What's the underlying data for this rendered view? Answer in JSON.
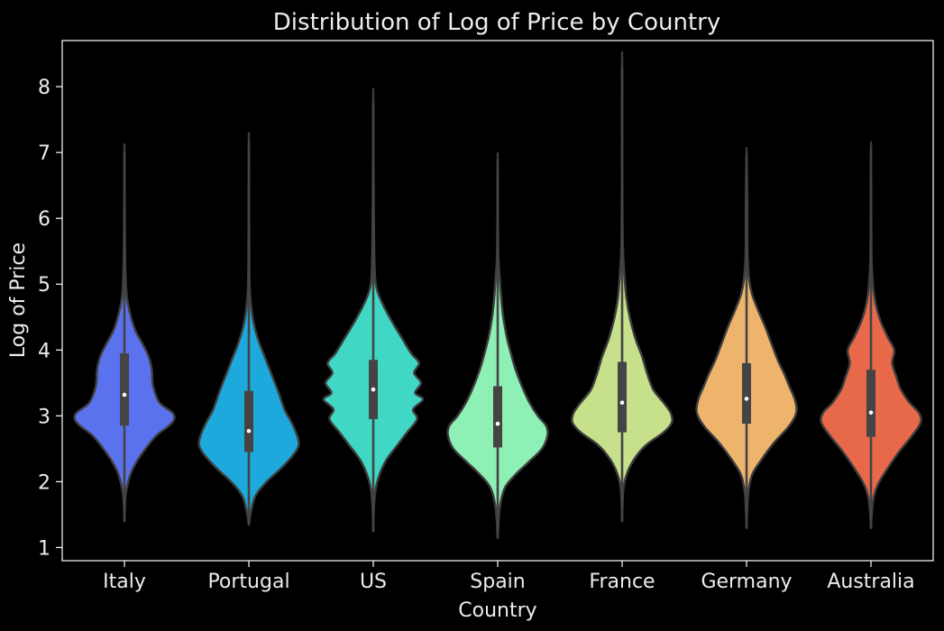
{
  "chart_data": {
    "type": "violin",
    "title": "Distribution of Log of Price by Country",
    "xlabel": "Country",
    "ylabel": "Log of Price",
    "ylim": [
      0.8,
      8.7
    ],
    "yticks": [
      1,
      2,
      3,
      4,
      5,
      6,
      7,
      8
    ],
    "categories": [
      "Italy",
      "Portugal",
      "US",
      "Spain",
      "France",
      "Germany",
      "Australia"
    ],
    "colors": [
      "#5b72ee",
      "#1ea9dc",
      "#40d8c4",
      "#8ef0b4",
      "#c6e08c",
      "#efb46c",
      "#e8694a"
    ],
    "series": [
      {
        "category": "Italy",
        "min": 1.4,
        "q1": 2.85,
        "median": 3.32,
        "q3": 3.95,
        "max": 7.0,
        "density": [
          [
            1.4,
            0
          ],
          [
            1.8,
            0.02
          ],
          [
            2.1,
            0.09
          ],
          [
            2.3,
            0.19
          ],
          [
            2.5,
            0.33
          ],
          [
            2.7,
            0.5
          ],
          [
            2.85,
            0.7
          ],
          [
            2.95,
            0.78
          ],
          [
            3.05,
            0.75
          ],
          [
            3.2,
            0.55
          ],
          [
            3.45,
            0.45
          ],
          [
            3.7,
            0.43
          ],
          [
            3.9,
            0.38
          ],
          [
            4.1,
            0.28
          ],
          [
            4.3,
            0.17
          ],
          [
            4.55,
            0.09
          ],
          [
            4.8,
            0.04
          ],
          [
            5.2,
            0.015
          ],
          [
            6.0,
            0.005
          ],
          [
            7.0,
            0
          ]
        ]
      },
      {
        "category": "Portugal",
        "min": 1.35,
        "q1": 2.45,
        "median": 2.77,
        "q3": 3.38,
        "max": 7.15,
        "density": [
          [
            1.35,
            0
          ],
          [
            1.6,
            0.04
          ],
          [
            1.8,
            0.1
          ],
          [
            2.0,
            0.25
          ],
          [
            2.2,
            0.45
          ],
          [
            2.4,
            0.62
          ],
          [
            2.55,
            0.7
          ],
          [
            2.7,
            0.68
          ],
          [
            2.9,
            0.6
          ],
          [
            3.1,
            0.5
          ],
          [
            3.35,
            0.42
          ],
          [
            3.6,
            0.33
          ],
          [
            3.85,
            0.24
          ],
          [
            4.1,
            0.15
          ],
          [
            4.4,
            0.07
          ],
          [
            4.8,
            0.02
          ],
          [
            5.2,
            0.008
          ],
          [
            6.0,
            0.004
          ],
          [
            7.15,
            0
          ]
        ]
      },
      {
        "category": "US",
        "min": 1.25,
        "q1": 2.95,
        "median": 3.4,
        "q3": 3.85,
        "max": 7.75,
        "density": [
          [
            1.25,
            0
          ],
          [
            1.7,
            0.01
          ],
          [
            2.0,
            0.04
          ],
          [
            2.3,
            0.12
          ],
          [
            2.55,
            0.24
          ],
          [
            2.75,
            0.34
          ],
          [
            2.95,
            0.44
          ],
          [
            3.1,
            0.4
          ],
          [
            3.25,
            0.5
          ],
          [
            3.35,
            0.42
          ],
          [
            3.5,
            0.48
          ],
          [
            3.65,
            0.41
          ],
          [
            3.8,
            0.46
          ],
          [
            3.95,
            0.38
          ],
          [
            4.15,
            0.3
          ],
          [
            4.4,
            0.2
          ],
          [
            4.65,
            0.11
          ],
          [
            4.9,
            0.04
          ],
          [
            5.2,
            0.015
          ],
          [
            6.0,
            0.006
          ],
          [
            7.75,
            0
          ]
        ]
      },
      {
        "category": "Spain",
        "min": 1.15,
        "q1": 2.52,
        "median": 2.88,
        "q3": 3.45,
        "max": 6.88,
        "density": [
          [
            1.15,
            0
          ],
          [
            1.6,
            0.03
          ],
          [
            1.9,
            0.1
          ],
          [
            2.1,
            0.25
          ],
          [
            2.3,
            0.45
          ],
          [
            2.5,
            0.64
          ],
          [
            2.7,
            0.72
          ],
          [
            2.85,
            0.7
          ],
          [
            3.0,
            0.58
          ],
          [
            3.2,
            0.46
          ],
          [
            3.45,
            0.35
          ],
          [
            3.7,
            0.26
          ],
          [
            3.95,
            0.19
          ],
          [
            4.2,
            0.13
          ],
          [
            4.5,
            0.08
          ],
          [
            4.8,
            0.05
          ],
          [
            5.1,
            0.03
          ],
          [
            5.4,
            0.01
          ],
          [
            6.0,
            0.004
          ],
          [
            6.88,
            0
          ]
        ]
      },
      {
        "category": "France",
        "min": 1.4,
        "q1": 2.75,
        "median": 3.2,
        "q3": 3.82,
        "max": 8.3,
        "density": [
          [
            1.4,
            0
          ],
          [
            1.9,
            0.02
          ],
          [
            2.15,
            0.08
          ],
          [
            2.35,
            0.18
          ],
          [
            2.55,
            0.34
          ],
          [
            2.75,
            0.6
          ],
          [
            2.9,
            0.72
          ],
          [
            3.05,
            0.7
          ],
          [
            3.2,
            0.6
          ],
          [
            3.4,
            0.45
          ],
          [
            3.65,
            0.36
          ],
          [
            3.9,
            0.29
          ],
          [
            4.15,
            0.2
          ],
          [
            4.45,
            0.12
          ],
          [
            4.8,
            0.06
          ],
          [
            5.2,
            0.03
          ],
          [
            5.6,
            0.01
          ],
          [
            6.5,
            0.004
          ],
          [
            8.3,
            0
          ]
        ]
      },
      {
        "category": "Germany",
        "min": 1.3,
        "q1": 2.88,
        "median": 3.26,
        "q3": 3.8,
        "max": 6.97,
        "density": [
          [
            1.3,
            0
          ],
          [
            1.8,
            0.02
          ],
          [
            2.1,
            0.07
          ],
          [
            2.35,
            0.2
          ],
          [
            2.6,
            0.36
          ],
          [
            2.85,
            0.55
          ],
          [
            3.05,
            0.64
          ],
          [
            3.25,
            0.62
          ],
          [
            3.45,
            0.55
          ],
          [
            3.65,
            0.48
          ],
          [
            3.85,
            0.4
          ],
          [
            4.1,
            0.32
          ],
          [
            4.35,
            0.24
          ],
          [
            4.6,
            0.15
          ],
          [
            4.85,
            0.07
          ],
          [
            5.1,
            0.03
          ],
          [
            5.6,
            0.01
          ],
          [
            6.2,
            0.01
          ],
          [
            6.97,
            0
          ]
        ]
      },
      {
        "category": "Australia",
        "min": 1.3,
        "q1": 2.68,
        "median": 3.05,
        "q3": 3.7,
        "max": 7.05,
        "density": [
          [
            1.3,
            0
          ],
          [
            1.7,
            0.03
          ],
          [
            1.95,
            0.1
          ],
          [
            2.2,
            0.25
          ],
          [
            2.45,
            0.42
          ],
          [
            2.7,
            0.62
          ],
          [
            2.9,
            0.75
          ],
          [
            3.05,
            0.72
          ],
          [
            3.2,
            0.58
          ],
          [
            3.4,
            0.45
          ],
          [
            3.6,
            0.38
          ],
          [
            3.8,
            0.32
          ],
          [
            4.0,
            0.35
          ],
          [
            4.2,
            0.25
          ],
          [
            4.45,
            0.14
          ],
          [
            4.7,
            0.07
          ],
          [
            5.0,
            0.03
          ],
          [
            5.4,
            0.01
          ],
          [
            6.2,
            0.004
          ],
          [
            7.05,
            0
          ]
        ]
      }
    ]
  }
}
